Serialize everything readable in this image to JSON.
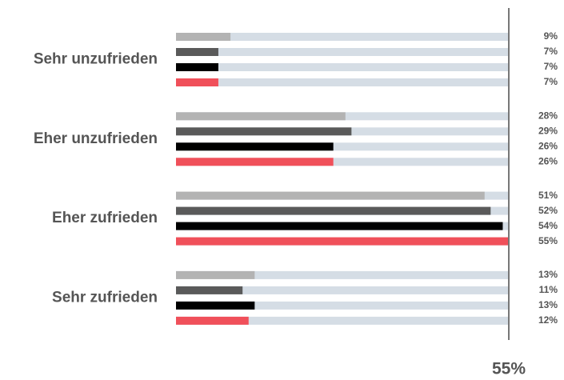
{
  "chart_data": {
    "type": "hbar",
    "categories": [
      "Sehr unzufrieden",
      "Eher unzufrieden",
      "Eher zufrieden",
      "Sehr zufrieden"
    ],
    "series": [
      {
        "color": "#b3b3b3",
        "values": [
          9,
          28,
          51,
          13
        ],
        "value_labels": [
          "9%",
          "28%",
          "51%",
          "13%"
        ]
      },
      {
        "color": "#5a5a5a",
        "values": [
          7,
          29,
          52,
          11
        ],
        "value_labels": [
          "7%",
          "29%",
          "52%",
          "11%"
        ]
      },
      {
        "color": "#000000",
        "values": [
          7,
          26,
          54,
          13
        ],
        "value_labels": [
          "7%",
          "26%",
          "54%",
          "13%"
        ]
      },
      {
        "color": "#f0505a",
        "values": [
          7,
          26,
          55,
          12
        ],
        "value_labels": [
          "7%",
          "26%",
          "55%",
          "12%"
        ]
      }
    ],
    "xlim": [
      0,
      55
    ],
    "xticks": [
      {
        "value": 55,
        "label": "55%"
      }
    ]
  }
}
